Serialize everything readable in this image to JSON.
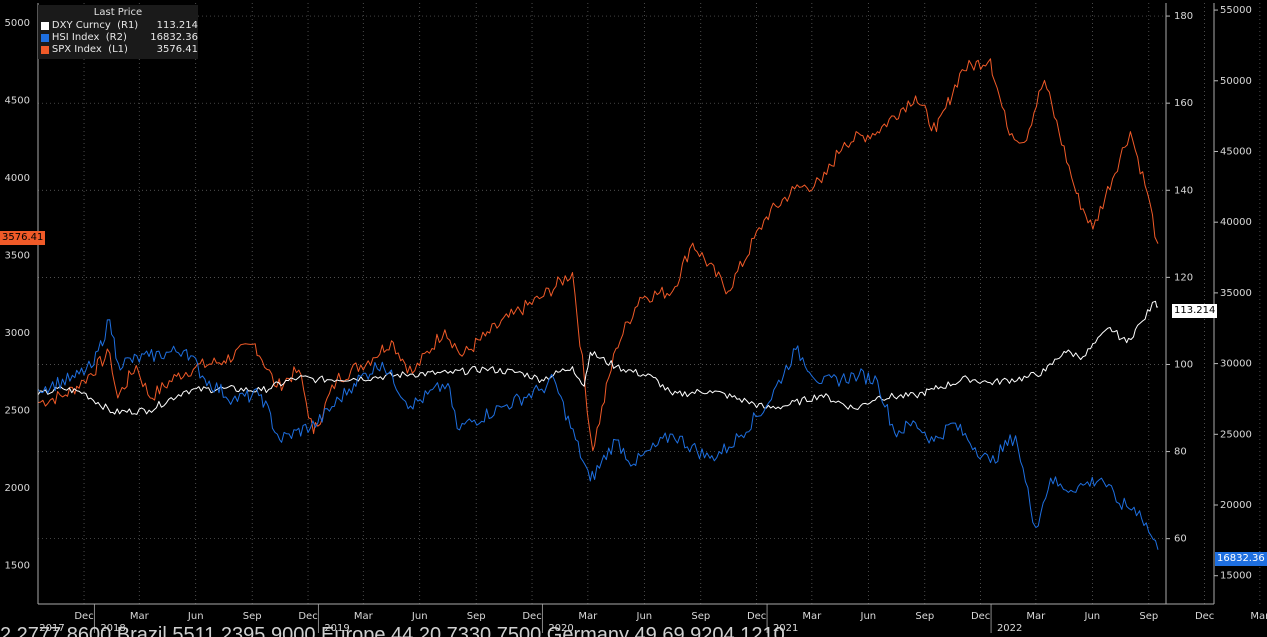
{
  "legend": {
    "title": "Last Price",
    "rows": [
      {
        "name": "DXY Curncy  (R1)",
        "value": "113.214",
        "color": "#ffffff"
      },
      {
        "name": "HSI Index  (R2)",
        "value": "16832.36",
        "color": "#1e6fe0"
      },
      {
        "name": "SPX Index  (L1)",
        "value": "3576.41",
        "color": "#f05a28"
      }
    ]
  },
  "tags": {
    "spx": "3576.41",
    "dxy": "113.214",
    "hsi": "16832.36"
  },
  "footer_text": "2 2777 8600 Brazil 5511 2395 9000 Europe 44 20 7330 7500 Germany 49 69 9204 1210",
  "chart_data": {
    "type": "line",
    "x_range": [
      "2017-10-01",
      "2022-09-30"
    ],
    "month_ticks": [
      "Dec",
      "Mar",
      "Jun",
      "Sep",
      "Dec",
      "Mar",
      "Jun",
      "Sep",
      "Dec",
      "Mar",
      "Jun",
      "Sep",
      "Dec",
      "Mar",
      "Jun",
      "Sep",
      "Dec",
      "Mar",
      "Jun",
      "Sep",
      "Dec",
      "Mar",
      "Jun",
      "Sep"
    ],
    "year_ticks": [
      "2017",
      "2018",
      "2019",
      "2020",
      "2021",
      "2022"
    ],
    "axes": {
      "L1": {
        "ticks": [
          1500,
          2000,
          2500,
          3000,
          3500,
          4000,
          4500,
          5000
        ],
        "range": [
          1250,
          5130
        ]
      },
      "R1": {
        "ticks": [
          60,
          80,
          100,
          120,
          140,
          160,
          180
        ],
        "range": [
          45,
          183
        ]
      },
      "R2": {
        "ticks": [
          15000,
          20000,
          25000,
          30000,
          35000,
          40000,
          45000,
          50000,
          55000
        ],
        "range": [
          13000,
          55500
        ]
      }
    },
    "grid": true,
    "legend_position": "top-left",
    "series": [
      {
        "name": "SPX Index (L1)",
        "axis": "L1",
        "color": "#f05a28",
        "values": [
          [
            "2017-10-01",
            2550
          ],
          [
            "2017-11-15",
            2600
          ],
          [
            "2017-12-15",
            2690
          ],
          [
            "2018-01-26",
            2870
          ],
          [
            "2018-02-08",
            2580
          ],
          [
            "2018-03-10",
            2790
          ],
          [
            "2018-04-02",
            2580
          ],
          [
            "2018-05-15",
            2720
          ],
          [
            "2018-06-15",
            2780
          ],
          [
            "2018-07-31",
            2820
          ],
          [
            "2018-09-20",
            2930
          ],
          [
            "2018-10-25",
            2650
          ],
          [
            "2018-11-30",
            2760
          ],
          [
            "2018-12-24",
            2350
          ],
          [
            "2019-01-31",
            2700
          ],
          [
            "2019-03-31",
            2840
          ],
          [
            "2019-04-30",
            2950
          ],
          [
            "2019-06-03",
            2740
          ],
          [
            "2019-07-26",
            3020
          ],
          [
            "2019-08-23",
            2850
          ],
          [
            "2019-09-30",
            2980
          ],
          [
            "2019-11-15",
            3120
          ],
          [
            "2019-12-31",
            3230
          ],
          [
            "2020-02-19",
            3390
          ],
          [
            "2020-03-23",
            2240
          ],
          [
            "2020-04-30",
            2900
          ],
          [
            "2020-06-08",
            3230
          ],
          [
            "2020-07-31",
            3270
          ],
          [
            "2020-09-02",
            3580
          ],
          [
            "2020-10-30",
            3270
          ],
          [
            "2020-12-31",
            3750
          ],
          [
            "2021-02-15",
            3930
          ],
          [
            "2021-03-31",
            3970
          ],
          [
            "2021-05-07",
            4230
          ],
          [
            "2021-06-30",
            4300
          ],
          [
            "2021-08-31",
            4530
          ],
          [
            "2021-10-04",
            4300
          ],
          [
            "2021-11-15",
            4700
          ],
          [
            "2021-12-31",
            4770
          ],
          [
            "2022-01-27",
            4330
          ],
          [
            "2022-02-24",
            4230
          ],
          [
            "2022-03-29",
            4630
          ],
          [
            "2022-05-20",
            3900
          ],
          [
            "2022-06-16",
            3670
          ],
          [
            "2022-08-16",
            4300
          ],
          [
            "2022-09-13",
            3900
          ],
          [
            "2022-09-30",
            3576.41
          ]
        ]
      },
      {
        "name": "DXY Curncy (R1)",
        "axis": "R1",
        "color": "#ffffff",
        "values": [
          [
            "2017-10-01",
            93
          ],
          [
            "2017-11-10",
            94.5
          ],
          [
            "2017-12-15",
            93.5
          ],
          [
            "2018-01-31",
            89
          ],
          [
            "2018-03-31",
            89.5
          ],
          [
            "2018-05-31",
            94
          ],
          [
            "2018-07-31",
            94.5
          ],
          [
            "2018-09-30",
            94
          ],
          [
            "2018-11-30",
            97
          ],
          [
            "2018-12-31",
            96.5
          ],
          [
            "2019-03-31",
            97
          ],
          [
            "2019-05-31",
            97.8
          ],
          [
            "2019-07-31",
            98
          ],
          [
            "2019-09-30",
            99
          ],
          [
            "2019-11-30",
            98
          ],
          [
            "2019-12-31",
            96.5
          ],
          [
            "2020-02-19",
            99.5
          ],
          [
            "2020-03-09",
            95
          ],
          [
            "2020-03-19",
            102.8
          ],
          [
            "2020-04-30",
            99.5
          ],
          [
            "2020-06-30",
            97
          ],
          [
            "2020-07-31",
            93
          ],
          [
            "2020-09-30",
            94
          ],
          [
            "2020-11-30",
            91.5
          ],
          [
            "2020-12-31",
            90
          ],
          [
            "2021-01-31",
            90.5
          ],
          [
            "2021-03-31",
            93
          ],
          [
            "2021-05-25",
            89.8
          ],
          [
            "2021-06-30",
            92.5
          ],
          [
            "2021-08-31",
            92.8
          ],
          [
            "2021-09-30",
            94.3
          ],
          [
            "2021-11-24",
            96.8
          ],
          [
            "2021-12-31",
            95.8
          ],
          [
            "2022-02-28",
            97
          ],
          [
            "2022-03-31",
            98.5
          ],
          [
            "2022-04-30",
            103
          ],
          [
            "2022-05-31",
            101.8
          ],
          [
            "2022-07-14",
            108.5
          ],
          [
            "2022-08-10",
            105
          ],
          [
            "2022-09-05",
            110
          ],
          [
            "2022-09-26",
            114.5
          ],
          [
            "2022-09-30",
            113.214
          ]
        ]
      },
      {
        "name": "HSI Index (R2)",
        "axis": "R2",
        "color": "#1e6fe0",
        "values": [
          [
            "2017-10-01",
            28200
          ],
          [
            "2017-11-30",
            29000
          ],
          [
            "2017-12-31",
            29900
          ],
          [
            "2018-01-26",
            33100
          ],
          [
            "2018-02-09",
            30000
          ],
          [
            "2018-03-31",
            30500
          ],
          [
            "2018-05-31",
            31000
          ],
          [
            "2018-06-30",
            28900
          ],
          [
            "2018-08-15",
            27500
          ],
          [
            "2018-09-30",
            27800
          ],
          [
            "2018-10-30",
            24600
          ],
          [
            "2018-12-31",
            25800
          ],
          [
            "2019-02-28",
            28600
          ],
          [
            "2019-04-15",
            30100
          ],
          [
            "2019-05-31",
            27000
          ],
          [
            "2019-07-31",
            28600
          ],
          [
            "2019-08-15",
            25400
          ],
          [
            "2019-10-31",
            27000
          ],
          [
            "2019-12-31",
            28200
          ],
          [
            "2020-01-20",
            28900
          ],
          [
            "2020-03-19",
            21700
          ],
          [
            "2020-04-30",
            24600
          ],
          [
            "2020-05-29",
            22900
          ],
          [
            "2020-07-31",
            25000
          ],
          [
            "2020-09-30",
            23300
          ],
          [
            "2020-10-31",
            24100
          ],
          [
            "2020-12-31",
            27000
          ],
          [
            "2021-02-17",
            31000
          ],
          [
            "2021-03-31",
            28600
          ],
          [
            "2021-05-31",
            29200
          ],
          [
            "2021-06-30",
            28800
          ],
          [
            "2021-07-28",
            25100
          ],
          [
            "2021-08-31",
            25800
          ],
          [
            "2021-09-30",
            24500
          ],
          [
            "2021-10-31",
            25800
          ],
          [
            "2021-12-31",
            23000
          ],
          [
            "2022-02-10",
            24900
          ],
          [
            "2022-03-15",
            18400
          ],
          [
            "2022-04-08",
            21900
          ],
          [
            "2022-04-29",
            21100
          ],
          [
            "2022-05-31",
            21400
          ],
          [
            "2022-06-30",
            21900
          ],
          [
            "2022-07-29",
            20100
          ],
          [
            "2022-08-31",
            19600
          ],
          [
            "2022-09-30",
            16832.36
          ]
        ]
      }
    ]
  }
}
